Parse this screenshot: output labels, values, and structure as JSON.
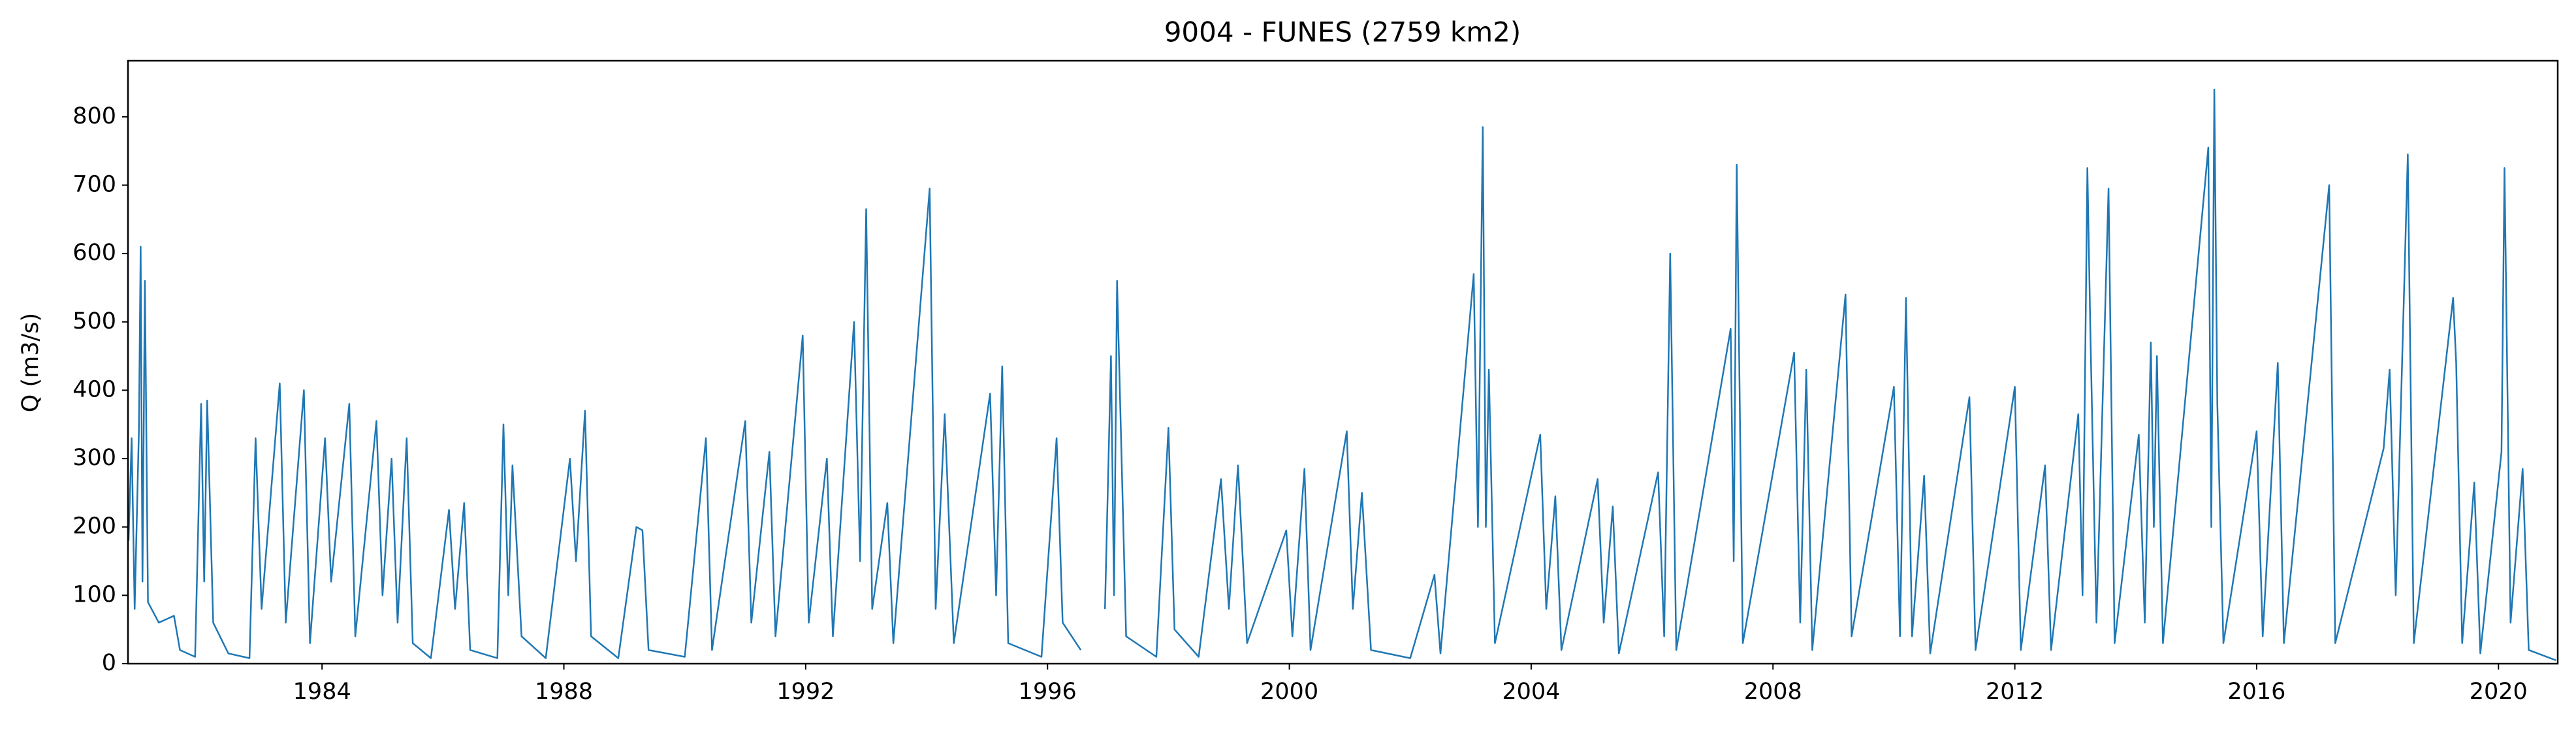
{
  "chart_data": {
    "type": "line",
    "title": "9004 - FUNES (2759 km2)",
    "ylabel": "Q (m3/s)",
    "xlim": [
      1980.79,
      2020.98
    ],
    "ylim": [
      0,
      882
    ],
    "xticks": [
      1984,
      1988,
      1992,
      1996,
      2000,
      2004,
      2008,
      2012,
      2016,
      2020
    ],
    "yticks": [
      0,
      100,
      200,
      300,
      400,
      500,
      600,
      700,
      800
    ],
    "x": [
      1980.8,
      1980.85,
      1980.9,
      1980.97,
      1981.0,
      1981.03,
      1981.07,
      1981.12,
      1981.3,
      1981.55,
      1981.65,
      1981.9,
      1982.0,
      1982.05,
      1982.1,
      1982.2,
      1982.45,
      1982.8,
      1982.9,
      1983.0,
      1983.3,
      1983.4,
      1983.7,
      1983.8,
      1984.05,
      1984.15,
      1984.45,
      1984.55,
      1984.9,
      1985.0,
      1985.15,
      1985.25,
      1985.4,
      1985.5,
      1985.8,
      1986.1,
      1986.2,
      1986.35,
      1986.45,
      1986.9,
      1987.0,
      1987.08,
      1987.15,
      1987.3,
      1987.7,
      1988.1,
      1988.2,
      1988.35,
      1988.45,
      1988.9,
      1989.2,
      1989.3,
      1989.4,
      1990.0,
      1990.35,
      1990.45,
      1991.0,
      1991.1,
      1991.4,
      1991.5,
      1991.95,
      1992.05,
      1992.35,
      1992.45,
      1992.8,
      1992.9,
      1993.0,
      1993.1,
      1993.35,
      1993.45,
      1994.05,
      1994.15,
      1994.3,
      1994.45,
      1995.05,
      1995.15,
      1995.25,
      1995.35,
      1995.9,
      1996.15,
      1996.25,
      1996.55,
      1996.75,
      1996.95,
      1997.05,
      1997.1,
      1997.15,
      1997.3,
      1997.8,
      1998.0,
      1998.1,
      1998.5,
      1998.87,
      1999.0,
      1999.15,
      1999.3,
      1999.95,
      2000.05,
      2000.25,
      2000.35,
      2000.95,
      2001.05,
      2001.2,
      2001.35,
      2002.0,
      2002.4,
      2002.5,
      2003.05,
      2003.12,
      2003.2,
      2003.25,
      2003.3,
      2003.4,
      2004.15,
      2004.25,
      2004.4,
      2004.5,
      2005.1,
      2005.2,
      2005.35,
      2005.45,
      2006.1,
      2006.2,
      2006.3,
      2006.4,
      2007.3,
      2007.35,
      2007.4,
      2007.5,
      2008.35,
      2008.45,
      2008.55,
      2008.65,
      2009.2,
      2009.3,
      2010.0,
      2010.1,
      2010.2,
      2010.3,
      2010.5,
      2010.6,
      2011.25,
      2011.35,
      2012.0,
      2012.1,
      2012.5,
      2012.6,
      2013.05,
      2013.12,
      2013.2,
      2013.25,
      2013.35,
      2013.55,
      2013.65,
      2014.05,
      2014.15,
      2014.25,
      2014.3,
      2014.35,
      2014.45,
      2015.2,
      2015.25,
      2015.3,
      2015.35,
      2015.45,
      2016.0,
      2016.1,
      2016.35,
      2016.45,
      2017.2,
      2017.3,
      2018.1,
      2018.2,
      2018.3,
      2018.5,
      2018.6,
      2019.25,
      2019.3,
      2019.4,
      2019.6,
      2019.7,
      2020.05,
      2020.1,
      2020.2,
      2020.4,
      2020.5,
      2020.95
    ],
    "series": [
      {
        "name": "Q",
        "color": "#1f77b4",
        "values": [
          180,
          330,
          80,
          340,
          610,
          120,
          560,
          90,
          60,
          70,
          20,
          10,
          380,
          120,
          385,
          60,
          15,
          8,
          330,
          80,
          410,
          60,
          400,
          30,
          330,
          120,
          380,
          40,
          355,
          100,
          300,
          60,
          330,
          30,
          8,
          225,
          80,
          235,
          20,
          8,
          350,
          100,
          290,
          40,
          8,
          300,
          150,
          370,
          40,
          8,
          200,
          195,
          20,
          10,
          330,
          20,
          355,
          60,
          310,
          40,
          480,
          60,
          300,
          40,
          500,
          150,
          665,
          80,
          235,
          30,
          695,
          80,
          365,
          30,
          395,
          100,
          435,
          30,
          10,
          330,
          60,
          20,
          null,
          80,
          450,
          100,
          560,
          40,
          10,
          345,
          50,
          10,
          270,
          80,
          290,
          30,
          195,
          40,
          285,
          20,
          340,
          80,
          250,
          20,
          8,
          130,
          15,
          570,
          200,
          785,
          200,
          430,
          30,
          335,
          80,
          245,
          20,
          270,
          60,
          230,
          15,
          280,
          40,
          600,
          20,
          490,
          150,
          730,
          30,
          455,
          60,
          430,
          20,
          540,
          40,
          405,
          40,
          535,
          40,
          275,
          15,
          390,
          20,
          405,
          20,
          290,
          20,
          365,
          100,
          725,
          485,
          60,
          695,
          30,
          335,
          60,
          470,
          200,
          450,
          30,
          755,
          200,
          840,
          380,
          30,
          340,
          40,
          440,
          30,
          700,
          30,
          315,
          430,
          100,
          745,
          30,
          535,
          440,
          30,
          265,
          15,
          310,
          725,
          60,
          285,
          20,
          5
        ]
      }
    ]
  }
}
